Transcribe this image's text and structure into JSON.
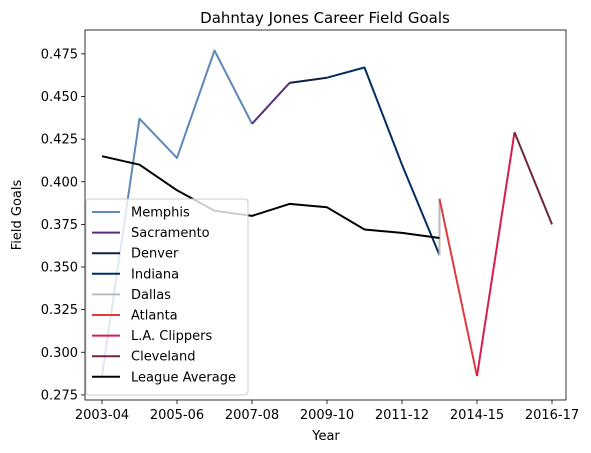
{
  "chart_data": {
    "type": "line",
    "title": "Dahntay Jones Career Field Goals",
    "xlabel": "Year",
    "ylabel": "Field Goals",
    "x_tick_labels": [
      "2003-04",
      "2005-06",
      "2007-08",
      "2009-10",
      "2011-12",
      "2014-15",
      "2016-17"
    ],
    "y_tick_labels": [
      "0.275",
      "0.300",
      "0.325",
      "0.350",
      "0.375",
      "0.400",
      "0.425",
      "0.450",
      "0.475"
    ],
    "ylim": [
      0.272,
      0.489
    ],
    "xlim": [
      2003.0,
      2017.5
    ],
    "grid": false,
    "legend_position": "lower-left",
    "x_unit": "season start year",
    "series": [
      {
        "name": "Memphis",
        "color": "#5d88b9",
        "points": [
          [
            2003,
            0.286
          ],
          [
            2004,
            0.437
          ],
          [
            2005,
            0.414
          ],
          [
            2006,
            0.477
          ],
          [
            2007,
            0.434
          ]
        ]
      },
      {
        "name": "Sacramento",
        "color": "#5a2d81",
        "points": [
          [
            2007,
            0.434
          ],
          [
            2008,
            0.458
          ]
        ]
      },
      {
        "name": "Denver",
        "color": "#0e2240",
        "points": [
          [
            2008,
            0.458
          ],
          [
            2009,
            0.461
          ]
        ]
      },
      {
        "name": "Indiana",
        "color": "#002d62",
        "points": [
          [
            2009,
            0.461
          ],
          [
            2010,
            0.467
          ],
          [
            2011,
            0.41
          ],
          [
            2012,
            0.357
          ]
        ]
      },
      {
        "name": "Dallas",
        "color": "#bbbbbb",
        "points": [
          [
            2012,
            0.357
          ],
          [
            2012,
            0.39
          ]
        ]
      },
      {
        "name": "Atlanta",
        "color": "#e03a3e",
        "points": [
          [
            2012,
            0.39
          ],
          [
            2013,
            0.286
          ]
        ]
      },
      {
        "name": "L.A. Clippers",
        "color": "#d81d4d",
        "points": [
          [
            2013,
            0.286
          ],
          [
            2014,
            0.429
          ]
        ]
      },
      {
        "name": "Cleveland",
        "color": "#6f263d",
        "points": [
          [
            2014,
            0.429
          ],
          [
            2015,
            0.375
          ]
        ]
      },
      {
        "name": "League Average",
        "color": "#000000",
        "points": [
          [
            2003,
            0.415
          ],
          [
            2004,
            0.41
          ],
          [
            2005,
            0.395
          ],
          [
            2006,
            0.383
          ],
          [
            2007,
            0.38
          ],
          [
            2008,
            0.387
          ],
          [
            2009,
            0.385
          ],
          [
            2010,
            0.372
          ],
          [
            2011,
            0.37
          ],
          [
            2012,
            0.367
          ]
        ]
      }
    ]
  }
}
